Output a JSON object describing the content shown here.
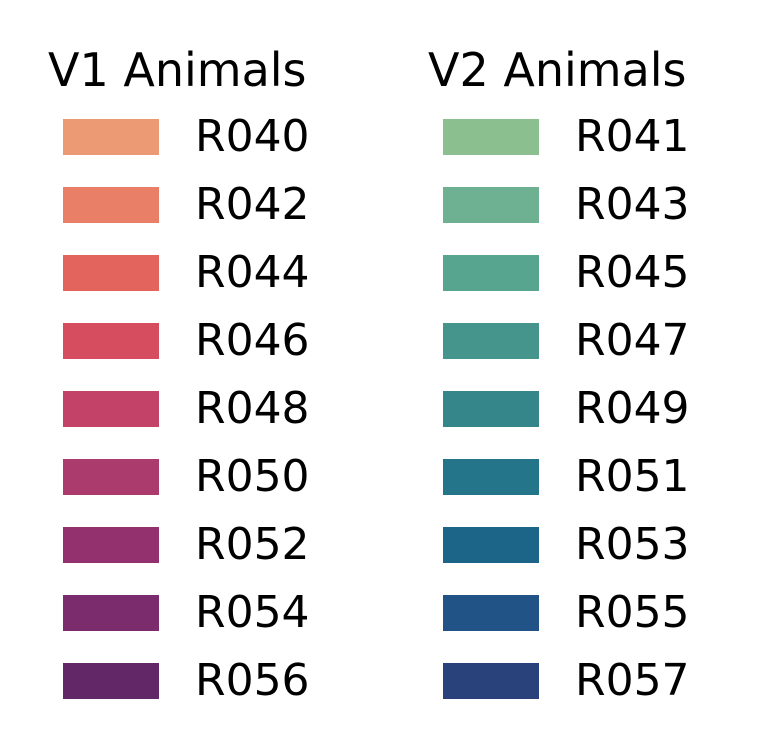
{
  "chart_data": {
    "type": "legend",
    "groups": [
      {
        "title": "V1 Animals",
        "entries": [
          {
            "label": "R040",
            "color": "#ec9a74"
          },
          {
            "label": "R042",
            "color": "#e87f66"
          },
          {
            "label": "R044",
            "color": "#e2645d"
          },
          {
            "label": "R046",
            "color": "#d54d5e"
          },
          {
            "label": "R048",
            "color": "#c34267"
          },
          {
            "label": "R050",
            "color": "#ab3b6c"
          },
          {
            "label": "R052",
            "color": "#93316f"
          },
          {
            "label": "R054",
            "color": "#7a2c6c"
          },
          {
            "label": "R056",
            "color": "#622766"
          }
        ]
      },
      {
        "title": "V2 Animals",
        "entries": [
          {
            "label": "R041",
            "color": "#8bbf8f"
          },
          {
            "label": "R043",
            "color": "#6eb192"
          },
          {
            "label": "R045",
            "color": "#57a48f"
          },
          {
            "label": "R047",
            "color": "#46958d"
          },
          {
            "label": "R049",
            "color": "#34868a"
          },
          {
            "label": "R051",
            "color": "#25758a"
          },
          {
            "label": "R053",
            "color": "#1d6489"
          },
          {
            "label": "R055",
            "color": "#225386"
          },
          {
            "label": "R057",
            "color": "#2a427c"
          }
        ]
      }
    ]
  }
}
